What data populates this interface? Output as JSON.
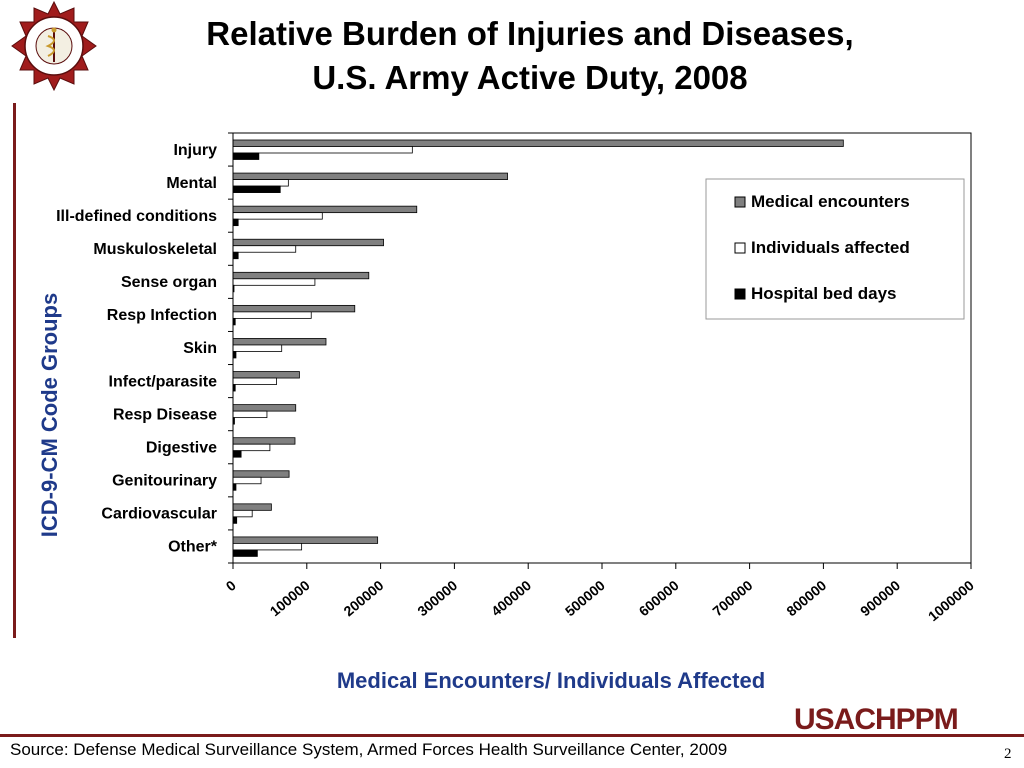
{
  "title_line1": "Relative Burden of Injuries and Diseases,",
  "title_line2": "U.S. Army Active Duty, 2008",
  "logo": {
    "text": "CONSERVARE SALUTEM",
    "icon": "army-medical-crest"
  },
  "brand": "USACHPPM",
  "source": "Source: Defense Medical Surveillance System, Armed Forces Health Surveillance Center, 2009",
  "page_number": "2",
  "colors": {
    "medical": "#808080",
    "individuals": "#ffffff",
    "hospital": "#000000",
    "axis_title": "#1f3a8a",
    "accent": "#7a1b1b"
  },
  "chart_data": {
    "type": "bar",
    "orientation": "horizontal",
    "categories": [
      "Injury",
      "Mental",
      "Ill-defined conditions",
      "Muskuloskeletal",
      "Sense organ",
      "Resp Infection",
      "Skin",
      "Infect/parasite",
      "Resp Disease",
      "Digestive",
      "Genitourinary",
      "Cardiovascular",
      "Other*"
    ],
    "series": [
      {
        "name": "Medical encounters",
        "values": [
          827000,
          372000,
          249000,
          204000,
          184000,
          165000,
          126000,
          90000,
          85000,
          84000,
          76000,
          52000,
          196000
        ]
      },
      {
        "name": "Individuals affected",
        "values": [
          243000,
          75000,
          121000,
          85000,
          111000,
          106000,
          66000,
          59000,
          46000,
          50000,
          38000,
          26000,
          93000
        ]
      },
      {
        "name": "Hospital bed days",
        "values": [
          35000,
          64000,
          7000,
          7000,
          1000,
          3000,
          4000,
          3000,
          2000,
          11000,
          4000,
          5000,
          33000
        ]
      }
    ],
    "xlabel": "Medical Encounters/ Individuals Affected",
    "ylabel": "ICD-9-CM Code Groups",
    "xlim": [
      0,
      1000000
    ],
    "xticks": [
      "0",
      "100000",
      "200000",
      "300000",
      "400000",
      "500000",
      "600000",
      "700000",
      "800000",
      "900000",
      "1000000"
    ],
    "legend_position": "top-right",
    "grid": false
  }
}
